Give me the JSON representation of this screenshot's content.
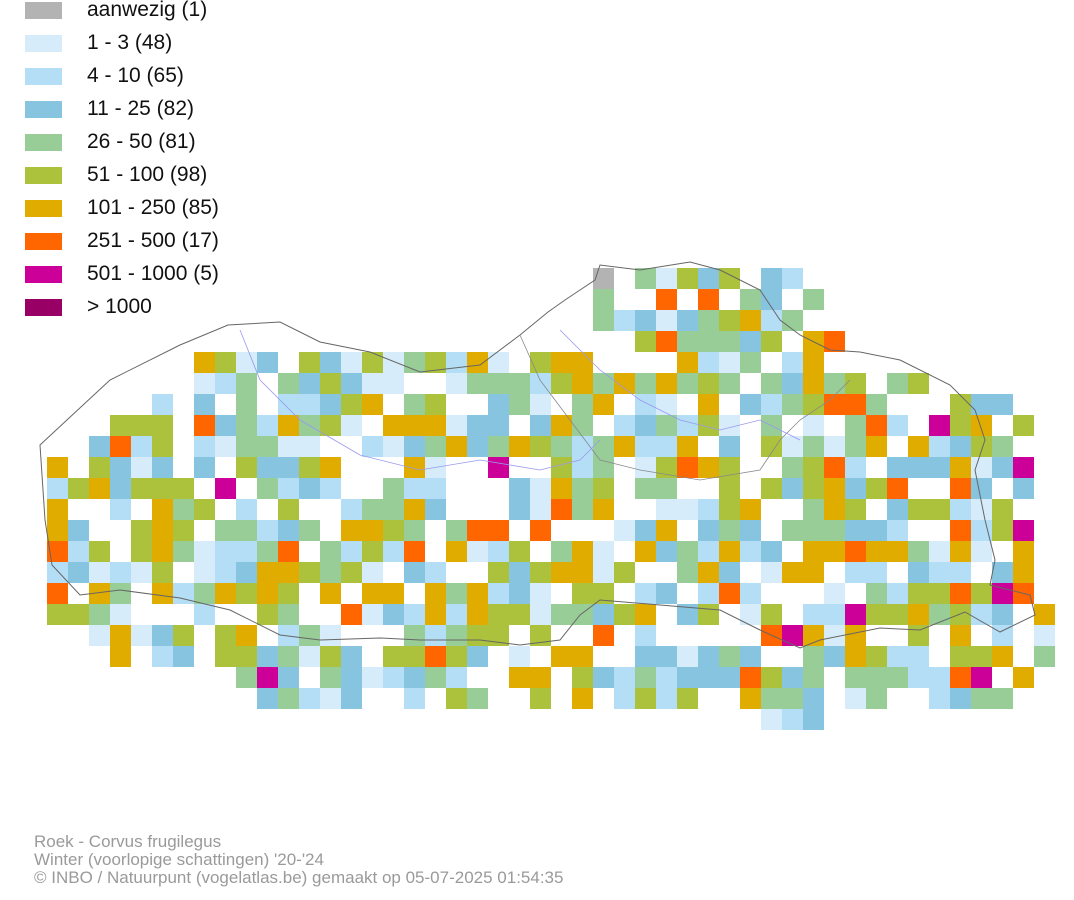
{
  "legend": [
    {
      "label": "aanwezig (1)",
      "color": "#b3b3b3"
    },
    {
      "label": "1 - 3 (48)",
      "color": "#d6ecfa"
    },
    {
      "label": "4 - 10 (65)",
      "color": "#b4def6"
    },
    {
      "label": "11 - 25 (82)",
      "color": "#87c4e0"
    },
    {
      "label": "26 - 50 (81)",
      "color": "#98cd98"
    },
    {
      "label": "51 - 100 (98)",
      "color": "#acc23c"
    },
    {
      "label": "101 - 250 (85)",
      "color": "#e0ac00"
    },
    {
      "label": "251 - 500 (17)",
      "color": "#ff6600"
    },
    {
      "label": "501 - 1000 (5)",
      "color": "#cc0099"
    },
    {
      "label": "> 1000",
      "color": "#990066"
    }
  ],
  "credits": {
    "species": "Roek - Corvus frugilegus",
    "period": "Winter (voorlopige schattingen) '20-'24",
    "copyright": "© INBO / Natuurpunt (vogelatlas.be) gemaakt op 05-07-2025 01:54:35"
  }
}
